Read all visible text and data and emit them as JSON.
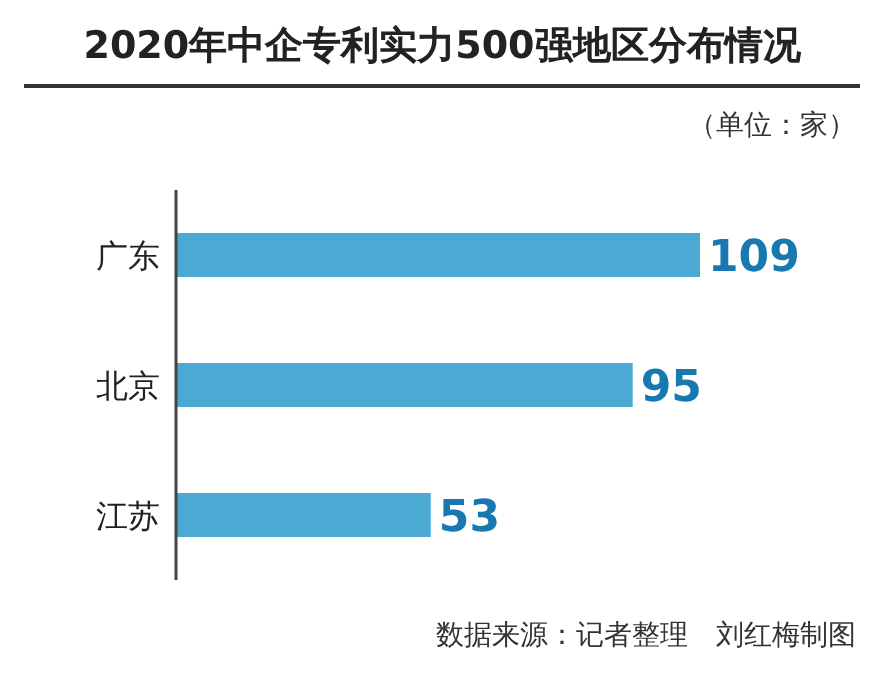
{
  "chart_data": {
    "type": "bar",
    "orientation": "horizontal",
    "title": "2020年中企专利实力500强地区分布情况",
    "subtitle": "（单位：家）",
    "categories": [
      "广东",
      "北京",
      "江苏"
    ],
    "values": [
      109,
      95,
      53
    ],
    "color": "#4aaad4",
    "data_labels": true,
    "annotations": [
      "数据来源：记者整理　刘红梅制图"
    ]
  }
}
